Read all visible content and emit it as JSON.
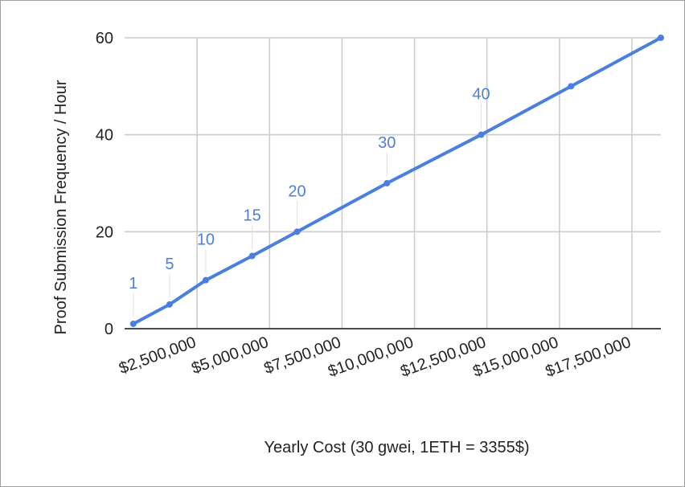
{
  "chart_data": {
    "type": "line",
    "xlabel": "Yearly Cost (30 gwei, 1ETH = 3355$)",
    "ylabel": "Proof Submission Frequency / Hour",
    "xlim": [
      0,
      18500000
    ],
    "ylim": [
      0,
      60
    ],
    "x_ticks": [
      2500000,
      5000000,
      7500000,
      10000000,
      12500000,
      15000000,
      17500000
    ],
    "x_tick_labels": [
      "$2,500,000",
      "$5,000,000",
      "$7,500,000",
      "$10,000,000",
      "$12,500,000",
      "$15,000,000",
      "$17,500,000"
    ],
    "y_ticks": [
      0,
      20,
      40,
      60
    ],
    "y_tick_labels": [
      "0",
      "20",
      "40",
      "60"
    ],
    "grid": true,
    "legend": "none",
    "series": [
      {
        "color": "#4a7fe0",
        "x": [
          300000,
          1550000,
          2800000,
          4400000,
          5950000,
          9050000,
          12300000,
          15400000,
          18500000
        ],
        "y": [
          1,
          5,
          10,
          15,
          20,
          30,
          40,
          50,
          60
        ],
        "labels": [
          "1",
          "5",
          "10",
          "15",
          "20",
          "30",
          "40",
          "",
          ""
        ]
      }
    ]
  }
}
